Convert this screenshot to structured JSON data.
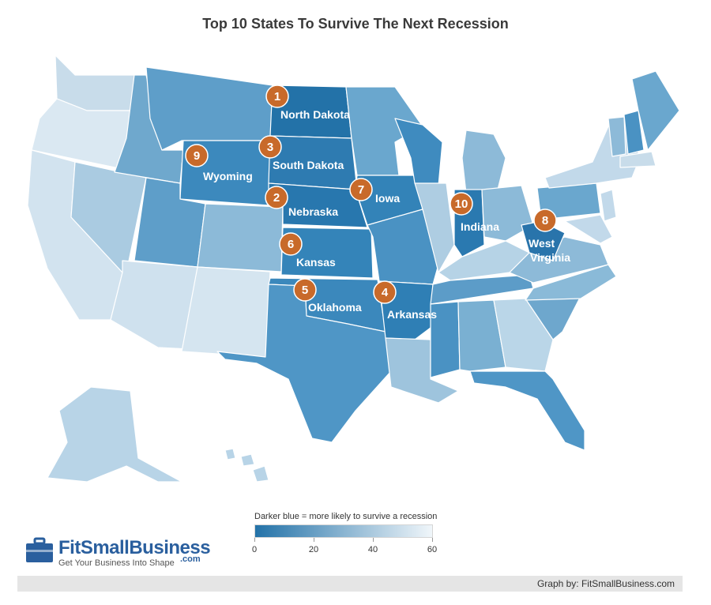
{
  "title": "Top 10 States To Survive The Next Recession",
  "legend": {
    "title": "Darker blue = more likely to survive a recession",
    "ticks": [
      "0",
      "20",
      "40",
      "60"
    ],
    "scale_min": 0,
    "scale_max": 60,
    "color_dark": "#2372a8",
    "color_light": "#f0f6fa"
  },
  "rank_color": "#c86a2a",
  "top10": [
    {
      "rank": "1",
      "state": "North Dakota"
    },
    {
      "rank": "2",
      "state": "Nebraska"
    },
    {
      "rank": "3",
      "state": "South Dakota"
    },
    {
      "rank": "4",
      "state": "Arkansas"
    },
    {
      "rank": "5",
      "state": "Oklahoma"
    },
    {
      "rank": "6",
      "state": "Kansas"
    },
    {
      "rank": "7",
      "state": "Iowa"
    },
    {
      "rank": "8",
      "state": "West Virginia"
    },
    {
      "rank": "9",
      "state": "Wyoming"
    },
    {
      "rank": "10",
      "state": "Indiana"
    }
  ],
  "branding": {
    "name": "FitSmallBusiness",
    "tagline": "Get Your Business Into Shape",
    "suffix": ".com",
    "brand_color": "#2a5f9e"
  },
  "credit": "Graph by: FitSmallBusiness.com"
}
